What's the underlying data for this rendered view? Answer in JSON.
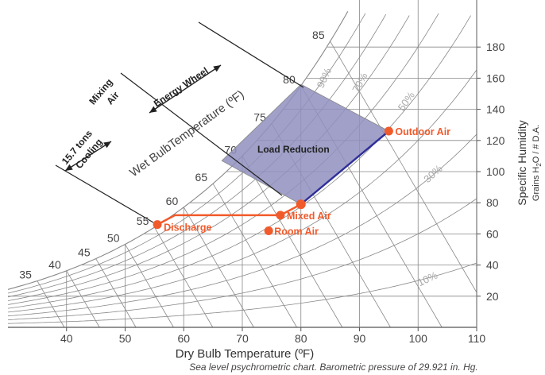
{
  "chart_data": {
    "type": "psychrometric",
    "x_axis": {
      "label": "Dry Bulb Temperature (ºF)",
      "range": [
        30,
        110
      ],
      "ticks": [
        40,
        50,
        60,
        70,
        80,
        90,
        100,
        110
      ]
    },
    "y_axis": {
      "label": "Specific Humidity",
      "sublabel_parts": [
        "Grains H",
        "2",
        "O / # D.A."
      ],
      "range": [
        0,
        190
      ],
      "ticks": [
        20,
        40,
        60,
        80,
        100,
        120,
        140,
        160,
        180
      ]
    },
    "wet_bulb_title": "Wet BulbTemperature (ºF)",
    "wet_bulb_lines": [
      35,
      40,
      45,
      50,
      55,
      60,
      65,
      70,
      75,
      80,
      85
    ],
    "rh_labels": [
      "10%",
      "30%",
      "50%",
      "70%",
      "90%"
    ],
    "points": [
      {
        "label": "Outdoor Air",
        "db": 95,
        "gr": 126
      },
      {
        "label": "Mixed Air",
        "db": 76.5,
        "gr": 72
      },
      {
        "label": "Discharge",
        "db": 55.5,
        "gr": 66
      },
      {
        "label": "Room Air",
        "db": 74.5,
        "gr": 62
      }
    ],
    "region_label": "Load Reduction",
    "process_labels": {
      "energy_wheel": "Energy Wheel",
      "mixing_air": [
        "Mixing",
        "Air"
      ],
      "cooling": [
        "15.7 tons",
        "Cooling"
      ]
    },
    "caption": "Sea level psychrometric chart. Barometric pressure of 29.921 in. Hg.",
    "colors": {
      "process": "#f15a2b",
      "region_fill": "#8f8fbf",
      "edge": "#2e2e9a",
      "grid": "#888888",
      "rh_label": "#aaaaaa"
    }
  }
}
